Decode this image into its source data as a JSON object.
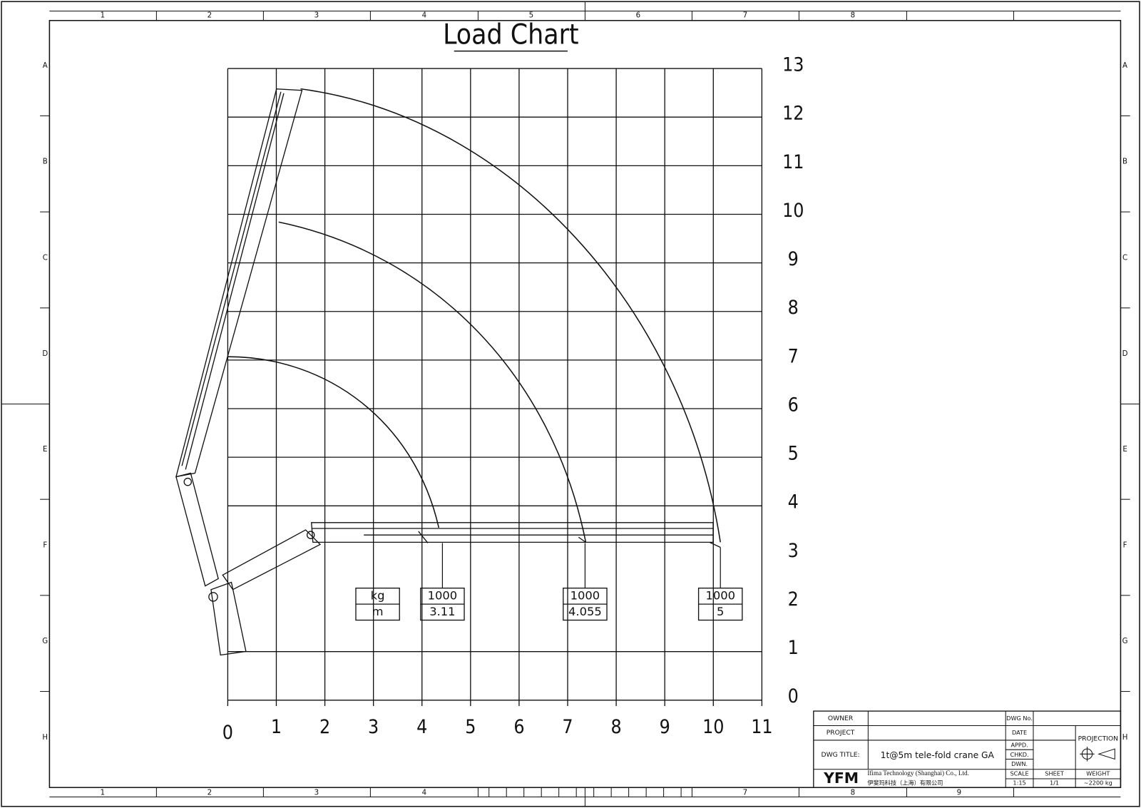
{
  "title": "Load Chart",
  "border": {
    "top": [
      "1",
      "2",
      "3",
      "4",
      "5",
      "6",
      "7",
      "8"
    ],
    "bottom": [
      "1",
      "2",
      "3",
      "4",
      "7",
      "8",
      "9"
    ],
    "rows": [
      "A",
      "B",
      "C",
      "D",
      "E",
      "F",
      "G",
      "H"
    ]
  },
  "axes": {
    "x": [
      "0",
      "1",
      "2",
      "3",
      "4",
      "5",
      "6",
      "7",
      "8",
      "9",
      "10",
      "11"
    ],
    "y": [
      "0",
      "1",
      "2",
      "3",
      "4",
      "5",
      "6",
      "7",
      "8",
      "9",
      "10",
      "11",
      "12",
      "13"
    ]
  },
  "units": {
    "load": "kg",
    "radius": "m"
  },
  "loads": [
    {
      "load": "1000",
      "radius": "3.11"
    },
    {
      "load": "1000",
      "radius": "4.055"
    },
    {
      "load": "1000",
      "radius": "5"
    }
  ],
  "title_block": {
    "owner": "OWNER",
    "project": "PROJECT",
    "dwg_title_label": "DWG TITLE:",
    "dwg_title": "1t@5m tele-fold crane GA",
    "dwg_no": "DWG No.",
    "date": "DATE",
    "appd": "APPD.",
    "chkd": "CHKD.",
    "dwn": "DWN.",
    "projection": "PROJECTION",
    "scale_label": "SCALE",
    "scale": "1:15",
    "sheet_label": "SHEET",
    "sheet": "1/1",
    "weight_label": "WEIGHT",
    "weight": "~2200 kg",
    "logo": "YFM",
    "company_en": "Ifima Technology (Shanghai) Co., Ltd.",
    "company_cn": "伊斐玛科技（上海）有限公司"
  }
}
